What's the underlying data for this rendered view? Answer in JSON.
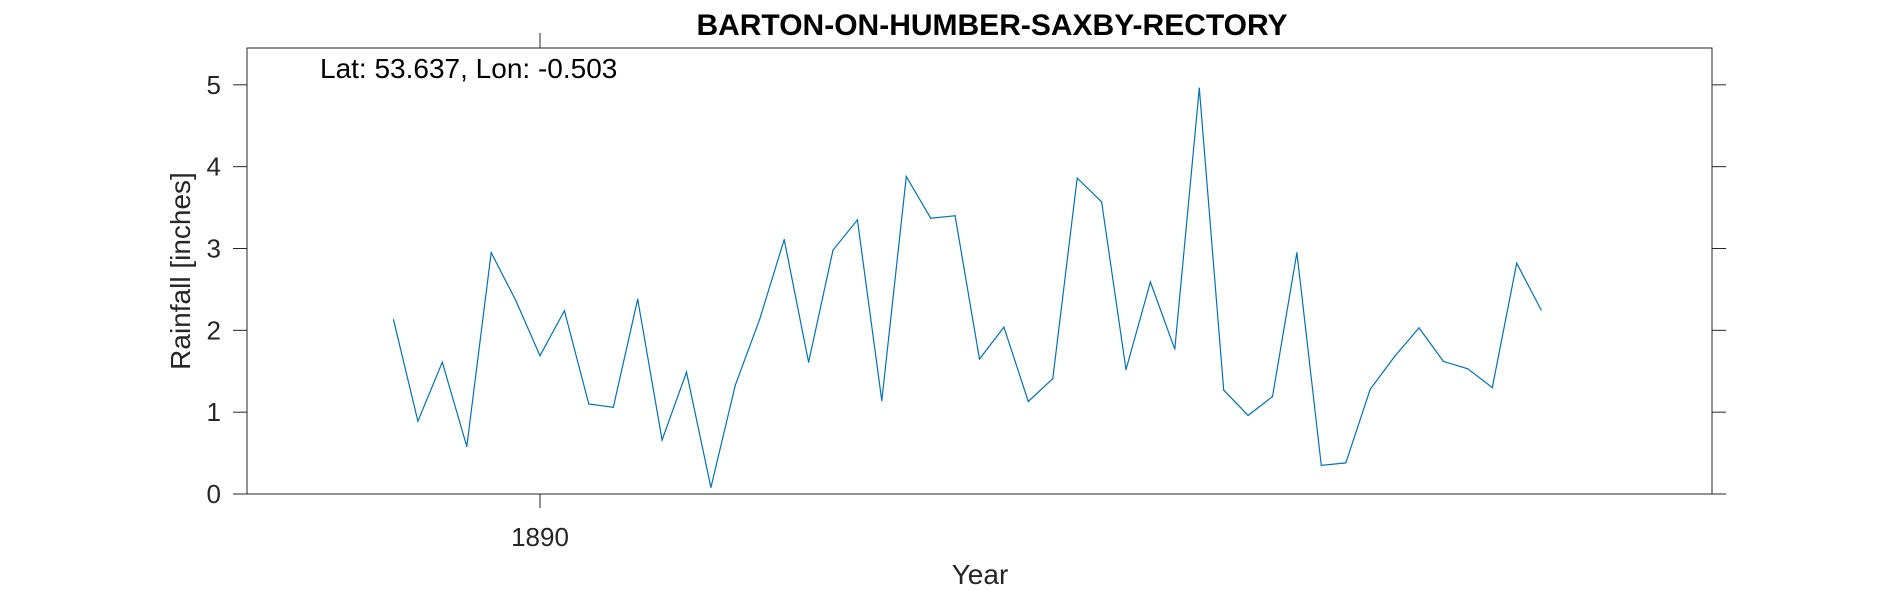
{
  "chart_data": {
    "type": "line",
    "title": "BARTON-ON-HUMBER-SAXBY-RECTORY",
    "annotation": "Lat: 53.637, Lon: -0.503",
    "xlabel": "Year",
    "ylabel": "Rainfall [inches]",
    "xlim": [
      1878,
      1938
    ],
    "ylim": [
      0,
      5.45
    ],
    "xticks": [
      1890
    ],
    "yticks": [
      0,
      1,
      2,
      3,
      4,
      5
    ],
    "grid": false,
    "line_color": "#0072BD",
    "series": [
      {
        "x": [
          1884,
          1885,
          1886,
          1887,
          1888,
          1889,
          1890,
          1891,
          1892,
          1893,
          1894,
          1895,
          1896,
          1897,
          1898,
          1899,
          1900,
          1901,
          1902,
          1903,
          1904,
          1905,
          1906,
          1907,
          1908,
          1909,
          1910,
          1911,
          1912,
          1913,
          1914,
          1915,
          1916,
          1917,
          1918,
          1919,
          1920,
          1921,
          1922,
          1923,
          1924,
          1925,
          1926,
          1927,
          1928,
          1929,
          1930,
          1931
        ],
        "values": [
          2.13,
          0.89,
          1.61,
          0.58,
          2.95,
          2.37,
          1.69,
          2.24,
          1.1,
          1.06,
          2.38,
          0.66,
          1.49,
          0.08,
          1.33,
          2.14,
          3.11,
          1.61,
          2.98,
          3.35,
          1.14,
          3.88,
          3.37,
          3.4,
          1.65,
          2.04,
          1.13,
          1.41,
          3.86,
          3.57,
          1.52,
          2.59,
          1.77,
          4.96,
          1.27,
          0.96,
          1.19,
          2.95,
          0.35,
          0.38,
          1.28,
          1.68,
          2.03,
          1.62,
          1.53,
          1.3,
          2.82,
          2.25
        ]
      }
    ]
  }
}
